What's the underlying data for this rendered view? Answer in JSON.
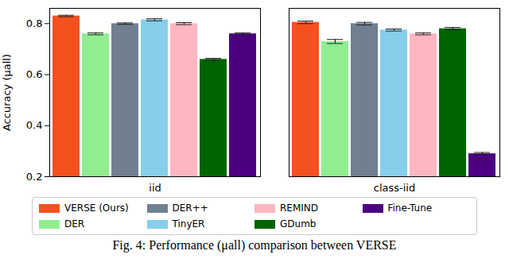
{
  "chart_data": {
    "type": "bar",
    "caption": "Fig. 4: Performance (μall) comparison between VERSE",
    "y_label": "Accuracy (μall)",
    "categories": [
      "iid",
      "class-iid"
    ],
    "series": [
      {
        "name": "VERSE (Ours)",
        "color": "#f4511e",
        "values": [
          0.83,
          0.805
        ],
        "errors": [
          0.003,
          0.005
        ]
      },
      {
        "name": "DER",
        "color": "#90ee90",
        "values": [
          0.76,
          0.73
        ],
        "errors": [
          0.004,
          0.008
        ]
      },
      {
        "name": "DER++",
        "color": "#708090",
        "values": [
          0.8,
          0.8
        ],
        "errors": [
          0.003,
          0.005
        ]
      },
      {
        "name": "TinyER",
        "color": "#87ceeb",
        "values": [
          0.815,
          0.775
        ],
        "errors": [
          0.004,
          0.004
        ]
      },
      {
        "name": "REMIND",
        "color": "#ffb6c1",
        "values": [
          0.8,
          0.76
        ],
        "errors": [
          0.004,
          0.004
        ]
      },
      {
        "name": "GDumb",
        "color": "#006400",
        "values": [
          0.66,
          0.78
        ],
        "errors": [
          0.004,
          0.005
        ]
      },
      {
        "name": "Fine-Tune",
        "color": "#4b0082",
        "values": [
          0.76,
          0.29
        ],
        "errors": [
          0.004,
          0.005
        ]
      }
    ],
    "ylim": [
      0.2,
      0.86
    ],
    "yticks": [
      0.2,
      0.4,
      0.6,
      0.8
    ],
    "grid": false,
    "legend": "bottom"
  }
}
